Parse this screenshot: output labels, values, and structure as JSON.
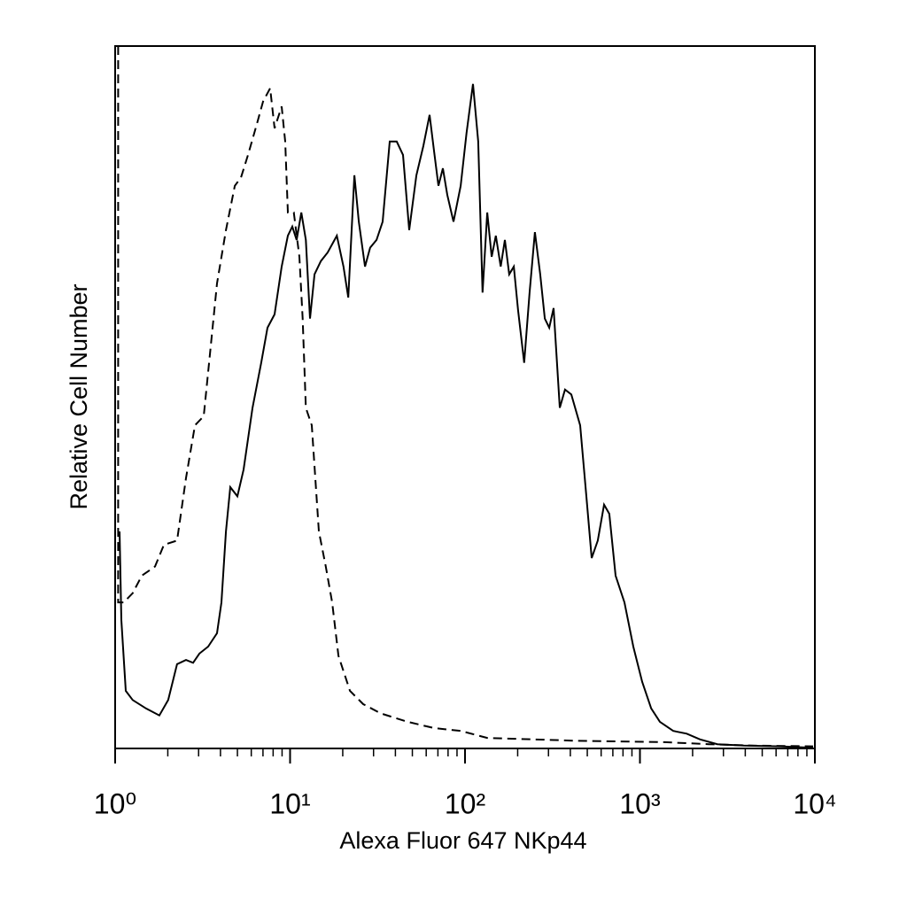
{
  "chart_data": {
    "type": "line",
    "x_label": "Alexa Fluor 647 NKp44",
    "y_label": "Relative Cell Number",
    "xscale": "log",
    "xlim": [
      1,
      10000
    ],
    "ylim": [
      0,
      100
    ],
    "xticks": [
      {
        "value": 1,
        "label": "10⁰"
      },
      {
        "value": 10,
        "label": "10¹"
      },
      {
        "value": 100,
        "label": "10²"
      },
      {
        "value": 1000,
        "label": "10³"
      },
      {
        "value": 10000,
        "label": "10⁴"
      }
    ],
    "xminorticks": [
      2,
      3,
      4,
      5,
      6,
      7,
      8,
      9,
      20,
      30,
      40,
      50,
      60,
      70,
      80,
      90,
      200,
      300,
      400,
      500,
      600,
      700,
      800,
      900,
      2000,
      3000,
      4000,
      5000,
      6000,
      7000,
      8000,
      9000
    ],
    "grid": false,
    "series": [
      {
        "color": "#000000",
        "line_style": "solid",
        "x": [
          1.06,
          1.085,
          1.15,
          1.26,
          1.5,
          1.79,
          2.01,
          2.26,
          2.54,
          2.79,
          3.03,
          3.4,
          3.82,
          4.05,
          4.3,
          4.55,
          5.0,
          5.42,
          6.1,
          6.84,
          7.43,
          8.15,
          8.95,
          9.71,
          10.3,
          10.9,
          11.6,
          12.3,
          13.0,
          13.8,
          15.0,
          16.4,
          18.5,
          20.2,
          21.5,
          23.3,
          24.7,
          26.8,
          28.7,
          31.2,
          33.8,
          37.1,
          40.7,
          44.2,
          48.0,
          52.7,
          57.8,
          62.7,
          66.5,
          70.5,
          74.7,
          79.2,
          85.9,
          94.4,
          102,
          111,
          119,
          126,
          134,
          142,
          150,
          160,
          169,
          179,
          190,
          201,
          218,
          234,
          251,
          269,
          286,
          303,
          321,
          348,
          373,
          405,
          455,
          494,
          530,
          574,
          624,
          668,
          726,
          815,
          916,
          1030,
          1160,
          1300,
          1550,
          1850,
          2200,
          2770,
          3940,
          6270,
          9770
        ],
        "values": [
          30.9,
          18.3,
          8.2,
          6.9,
          5.7,
          4.7,
          6.9,
          12.0,
          12.6,
          12.2,
          13.5,
          14.5,
          16.4,
          20.8,
          30.9,
          37.2,
          35.9,
          39.7,
          48.5,
          54.9,
          59.9,
          61.8,
          68.6,
          73.0,
          74.3,
          72.4,
          76.3,
          72.4,
          61.2,
          67.5,
          69.4,
          70.6,
          73.0,
          68.6,
          64.2,
          81.6,
          75.0,
          68.6,
          71.3,
          72.4,
          75.0,
          86.4,
          86.4,
          84.5,
          73.8,
          81.6,
          85.8,
          90.2,
          85.1,
          80.1,
          82.6,
          78.8,
          75.0,
          80.1,
          87.6,
          94.6,
          86.4,
          64.9,
          76.3,
          70.0,
          73.0,
          68.6,
          72.4,
          67.5,
          68.6,
          62.4,
          54.9,
          64.9,
          73.5,
          67.5,
          61.2,
          59.9,
          62.7,
          48.5,
          51.1,
          50.4,
          46.0,
          35.9,
          27.1,
          29.6,
          34.7,
          33.4,
          24.6,
          20.8,
          14.5,
          9.5,
          5.7,
          3.8,
          2.5,
          2.1,
          1.3,
          0.6,
          0.4,
          0.3,
          0.1
        ]
      },
      {
        "color": "#000000",
        "line_style": "dashed",
        "x": [
          1.04,
          1.04,
          1.12,
          1.26,
          1.42,
          1.69,
          1.9,
          2.26,
          2.54,
          2.86,
          3.21,
          3.48,
          3.82,
          4.3,
          4.83,
          5.24,
          5.75,
          6.46,
          7.01,
          7.69,
          8.15,
          8.95,
          9.38,
          9.71,
          10.5,
          11.3,
          11.8,
          12.3,
          13.3,
          14.6,
          16.0,
          17.4,
          18.9,
          22.0,
          26.2,
          33.0,
          46.9,
          66.5,
          94.4,
          134,
          240,
          430,
          769,
          1380,
          2470,
          4420,
          9770
        ],
        "values": [
          100,
          20.8,
          20.8,
          22.1,
          24.6,
          25.9,
          29.0,
          29.6,
          38.5,
          46.0,
          47.3,
          56.1,
          66.2,
          73.8,
          80.1,
          81.3,
          84.5,
          88.9,
          92.1,
          94.0,
          88.3,
          91.4,
          86.4,
          76.3,
          76.3,
          70.0,
          61.2,
          48.5,
          46.0,
          30.9,
          25.9,
          20.8,
          13.2,
          8.2,
          6.3,
          5.0,
          3.8,
          2.9,
          2.5,
          1.5,
          1.3,
          1.1,
          1.0,
          0.9,
          0.6,
          0.4,
          0.3
        ]
      }
    ]
  }
}
